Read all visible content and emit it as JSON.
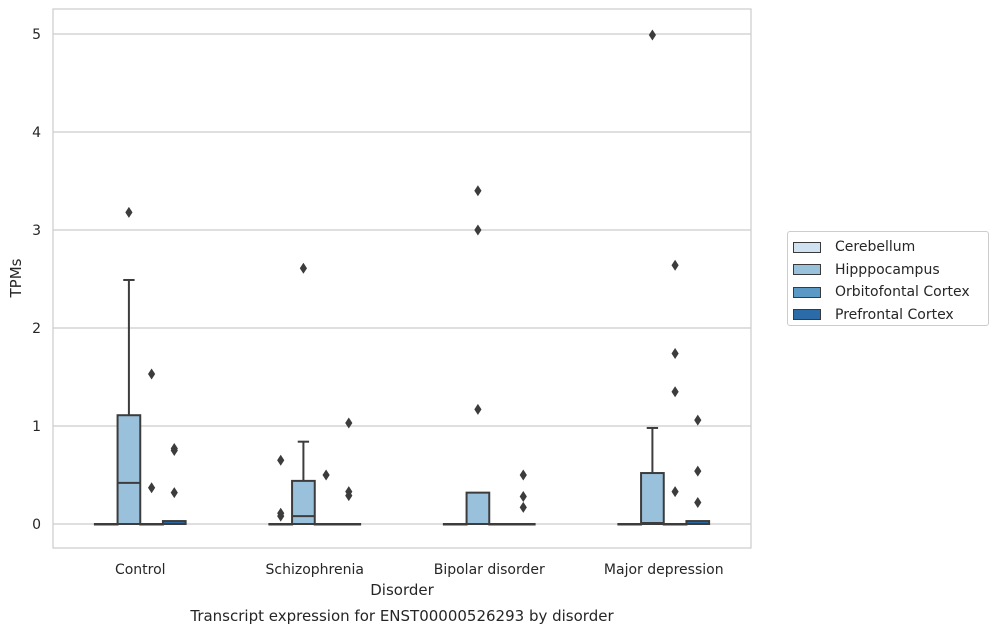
{
  "chart_data": {
    "type": "box",
    "title": "Transcript expression for ENST00000526293 by disorder",
    "xlabel": "Disorder",
    "ylabel": "TPMs",
    "categories": [
      "Control",
      "Schizophrenia",
      "Bipolar disorder",
      "Major depression"
    ],
    "ylim": [
      -0.25,
      5.25
    ],
    "yticks": [
      "0",
      "1",
      "2",
      "3",
      "4",
      "5"
    ],
    "grid": true,
    "legend_position": "right",
    "series": [
      {
        "name": "Cerebellum",
        "color": "#d0e1f2",
        "boxes": [
          {
            "q1": 0,
            "median": 0,
            "q3": 0,
            "whisker_low": 0,
            "whisker_high": 0,
            "outliers": []
          },
          {
            "q1": 0,
            "median": 0,
            "q3": 0,
            "whisker_low": 0,
            "whisker_high": 0,
            "outliers": [
              0.08,
              0.11,
              0.65
            ]
          },
          {
            "q1": 0,
            "median": 0,
            "q3": 0,
            "whisker_low": 0,
            "whisker_high": 0,
            "outliers": []
          },
          {
            "q1": 0,
            "median": 0,
            "q3": 0,
            "whisker_low": 0,
            "whisker_high": 0,
            "outliers": []
          }
        ]
      },
      {
        "name": "Hipppocampus",
        "color": "#9ac1dc",
        "boxes": [
          {
            "q1": 0,
            "median": 0.42,
            "q3": 1.11,
            "whisker_low": 0,
            "whisker_high": 2.49,
            "outliers": [
              3.18
            ]
          },
          {
            "q1": 0,
            "median": 0.08,
            "q3": 0.44,
            "whisker_low": 0,
            "whisker_high": 0.84,
            "outliers": [
              2.61
            ]
          },
          {
            "q1": 0,
            "median": 0,
            "q3": 0.32,
            "whisker_low": 0,
            "whisker_high": 0.32,
            "outliers": [
              1.17,
              3.0,
              3.4
            ]
          },
          {
            "q1": 0,
            "median": 0.01,
            "q3": 0.52,
            "whisker_low": 0,
            "whisker_high": 0.98,
            "outliers": [
              4.99
            ]
          }
        ]
      },
      {
        "name": "Orbitofontal Cortex",
        "color": "#5a98c5",
        "boxes": [
          {
            "q1": 0,
            "median": 0,
            "q3": 0,
            "whisker_low": 0,
            "whisker_high": 0,
            "outliers": [
              0.37,
              1.53
            ]
          },
          {
            "q1": 0,
            "median": 0,
            "q3": 0,
            "whisker_low": 0,
            "whisker_high": 0,
            "outliers": [
              0.5
            ]
          },
          {
            "q1": 0,
            "median": 0,
            "q3": 0,
            "whisker_low": 0,
            "whisker_high": 0,
            "outliers": []
          },
          {
            "q1": 0,
            "median": 0,
            "q3": 0,
            "whisker_low": 0,
            "whisker_high": 0,
            "outliers": [
              0.33,
              1.35,
              1.74,
              2.64
            ]
          }
        ]
      },
      {
        "name": "Prefrontal Cortex",
        "color": "#2a6ba8",
        "boxes": [
          {
            "q1": 0,
            "median": 0,
            "q3": 0.03,
            "whisker_low": 0,
            "whisker_high": 0.03,
            "outliers": [
              0.32,
              0.75,
              0.77
            ]
          },
          {
            "q1": 0,
            "median": 0,
            "q3": 0,
            "whisker_low": 0,
            "whisker_high": 0,
            "outliers": [
              0.29,
              0.33,
              1.03
            ]
          },
          {
            "q1": 0,
            "median": 0,
            "q3": 0,
            "whisker_low": 0,
            "whisker_high": 0,
            "outliers": [
              0.17,
              0.28,
              0.5
            ]
          },
          {
            "q1": 0,
            "median": 0,
            "q3": 0.03,
            "whisker_low": 0,
            "whisker_high": 0.03,
            "outliers": [
              0.22,
              0.54,
              1.06
            ]
          }
        ]
      }
    ]
  }
}
